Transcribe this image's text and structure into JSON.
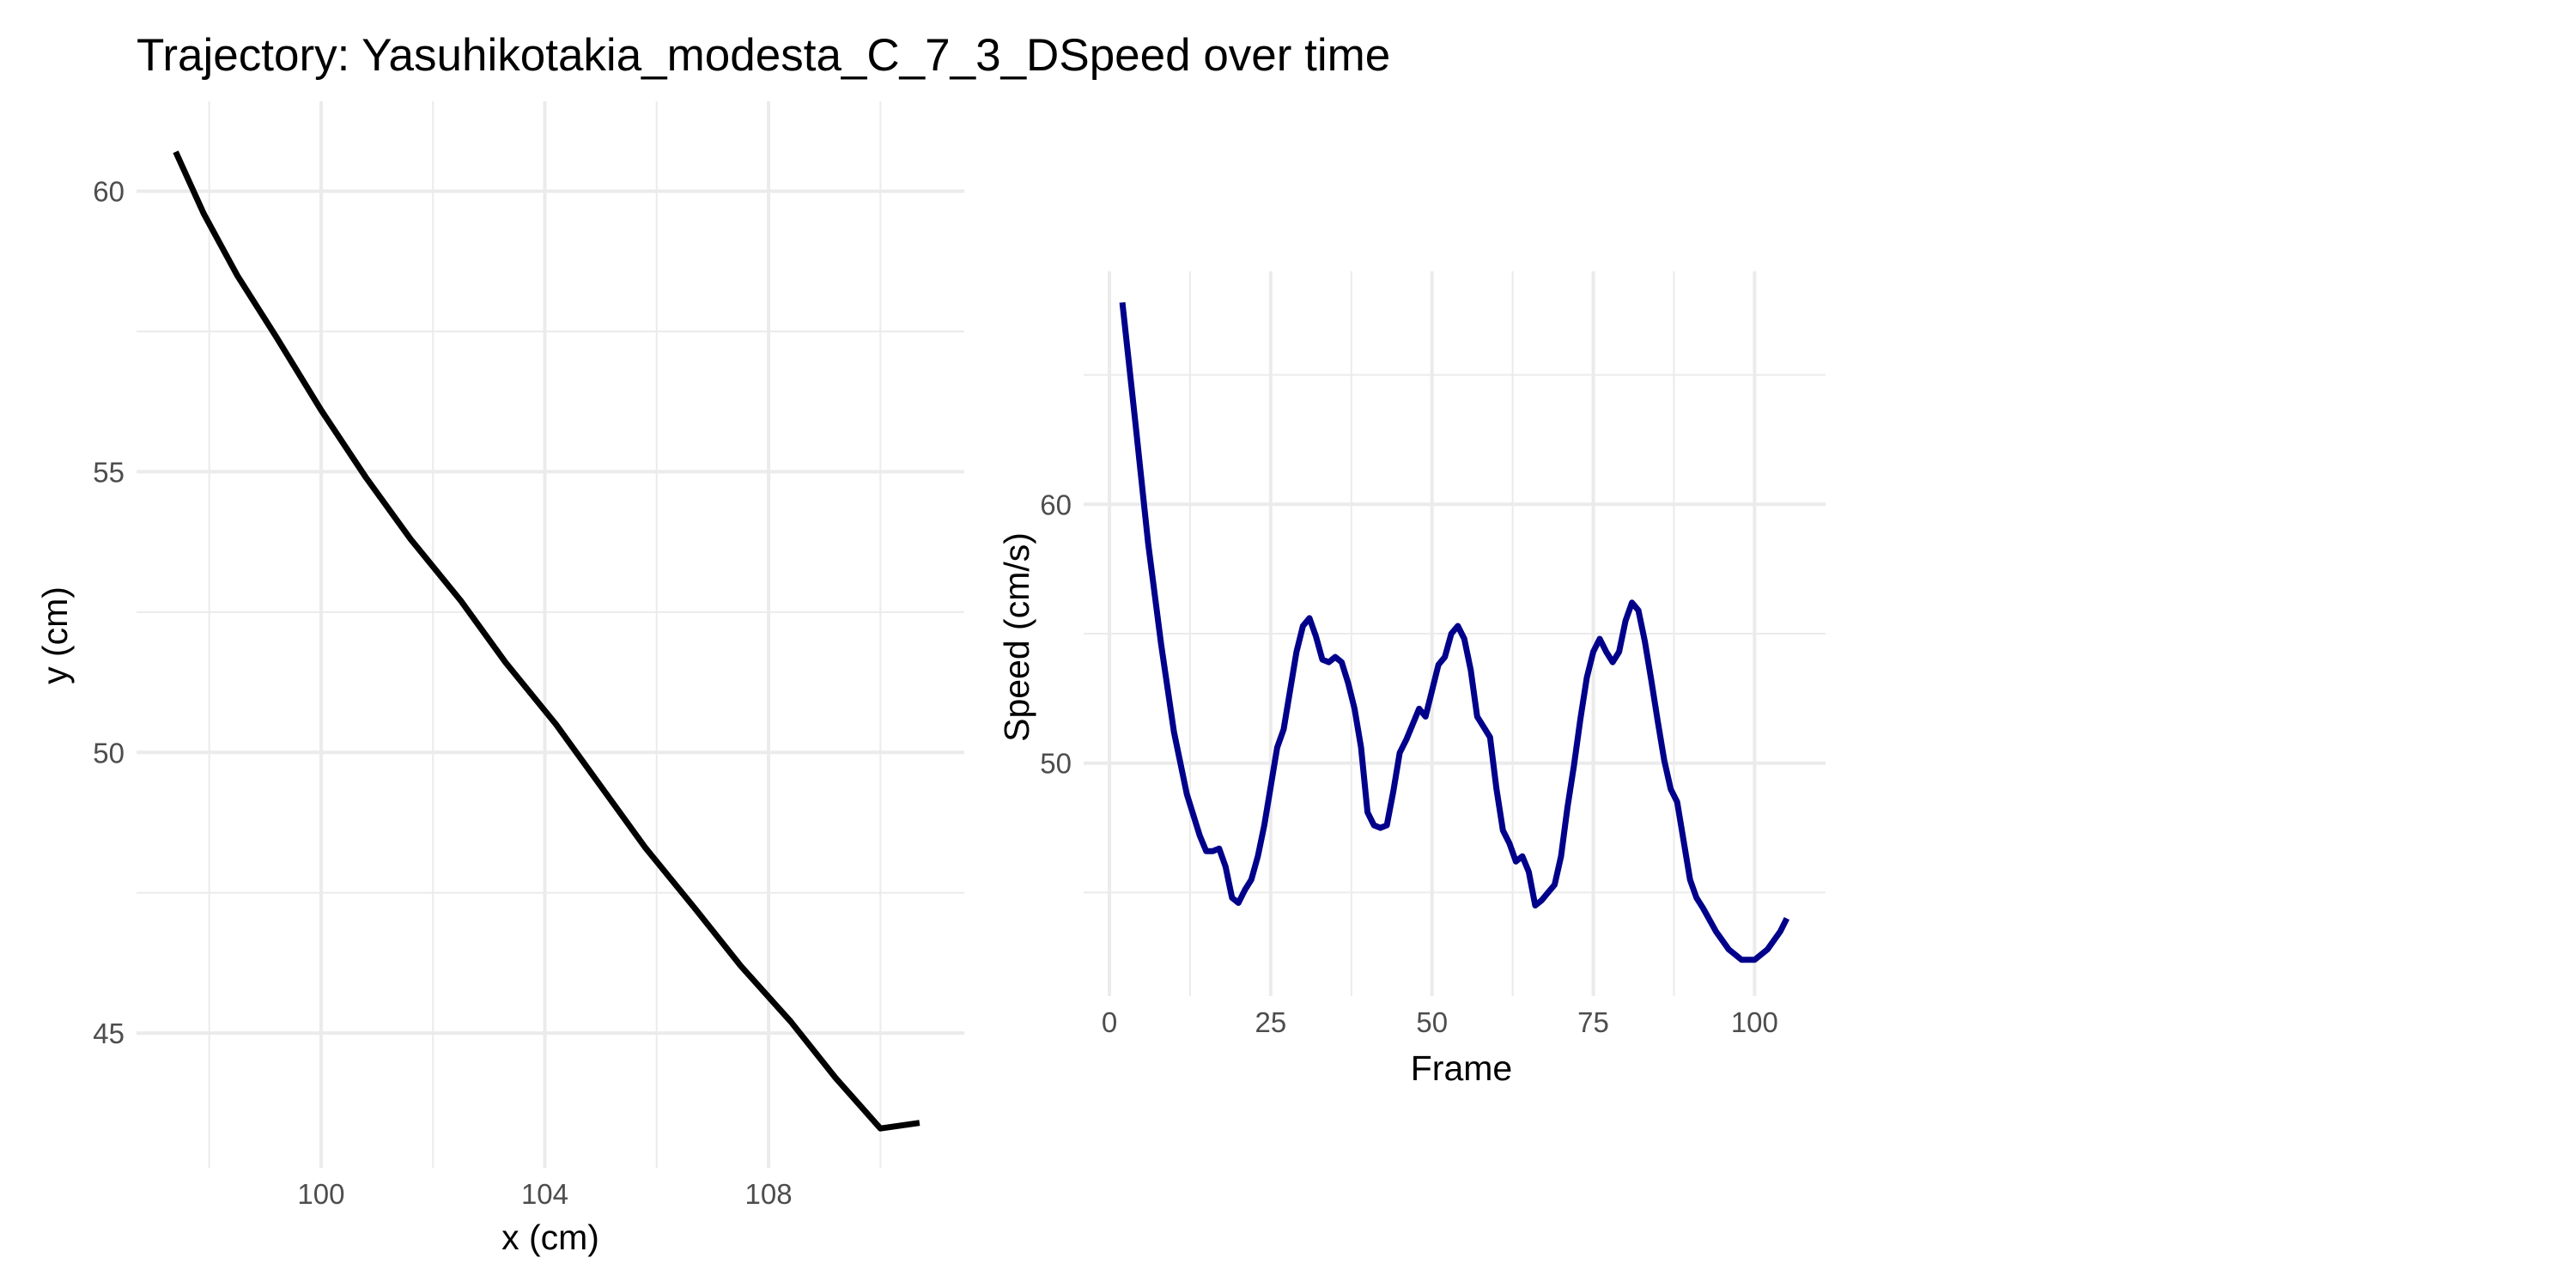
{
  "title": "Trajectory: Yasuhikotakia_modesta_C_7_3_DSpeed over time",
  "chart_data": [
    {
      "type": "line",
      "xlabel": "x (cm)",
      "ylabel": "y (cm)",
      "xlim": [
        96.7,
        111.5
      ],
      "ylim": [
        42.6,
        61.6
      ],
      "x_ticks": [
        100,
        104,
        108
      ],
      "y_ticks": [
        45,
        50,
        55,
        60
      ],
      "grid": true,
      "color": "#000000",
      "series": [
        {
          "x": [
            97.4,
            97.9,
            98.5,
            99.2,
            100.0,
            100.8,
            101.6,
            102.5,
            103.3,
            104.2,
            105.0,
            105.8,
            106.7,
            107.5,
            108.4,
            109.2,
            110.0,
            110.7
          ],
          "y": [
            60.7,
            59.6,
            58.5,
            57.4,
            56.1,
            54.9,
            53.8,
            52.7,
            51.6,
            50.5,
            49.4,
            48.3,
            47.2,
            46.2,
            45.2,
            44.2,
            43.3,
            43.4
          ]
        }
      ]
    },
    {
      "type": "line",
      "xlabel": "Frame",
      "ylabel": "Speed (cm/s)",
      "xlim": [
        -4,
        111
      ],
      "ylim": [
        41,
        69
      ],
      "x_ticks": [
        0,
        25,
        50,
        75,
        100
      ],
      "y_ticks": [
        50,
        60
      ],
      "grid": true,
      "color": "#00008B",
      "series": [
        {
          "x": [
            2,
            4,
            6,
            8,
            10,
            12,
            14,
            15,
            16,
            17,
            18,
            19,
            20,
            21,
            22,
            23,
            24,
            25,
            26,
            27,
            28,
            29,
            30,
            31,
            32,
            33,
            34,
            35,
            36,
            37,
            38,
            39,
            40,
            41,
            42,
            43,
            44,
            45,
            46,
            47,
            48,
            49,
            50,
            51,
            52,
            53,
            54,
            55,
            56,
            57,
            58,
            59,
            60,
            61,
            62,
            63,
            64,
            65,
            66,
            67,
            68,
            69,
            70,
            71,
            72,
            73,
            74,
            75,
            76,
            77,
            78,
            79,
            80,
            81,
            82,
            83,
            84,
            85,
            86,
            87,
            88,
            89,
            90,
            91,
            92,
            94,
            96,
            98,
            100,
            102,
            104,
            105
          ],
          "y": [
            67.8,
            63.2,
            58.5,
            54.6,
            51.2,
            48.8,
            47.2,
            46.6,
            46.6,
            46.7,
            46.0,
            44.8,
            44.6,
            45.1,
            45.5,
            46.4,
            47.6,
            49.1,
            50.6,
            51.3,
            52.8,
            54.3,
            55.3,
            55.6,
            54.9,
            54.0,
            53.9,
            54.1,
            53.9,
            53.1,
            52.1,
            50.6,
            48.1,
            47.6,
            47.5,
            47.6,
            48.9,
            50.4,
            50.9,
            51.5,
            52.1,
            51.8,
            52.8,
            53.8,
            54.1,
            55.0,
            55.3,
            54.8,
            53.6,
            51.8,
            51.4,
            51.0,
            49.0,
            47.4,
            46.9,
            46.2,
            46.4,
            45.8,
            44.5,
            44.7,
            45.0,
            45.3,
            46.4,
            48.3,
            49.9,
            51.7,
            53.3,
            54.3,
            54.8,
            54.3,
            53.9,
            54.3,
            55.5,
            56.2,
            55.9,
            54.7,
            53.2,
            51.6,
            50.1,
            49.0,
            48.5,
            47.0,
            45.5,
            44.8,
            44.4,
            43.5,
            42.8,
            42.4,
            42.4,
            42.8,
            43.5,
            44.0
          ]
        }
      ]
    }
  ]
}
